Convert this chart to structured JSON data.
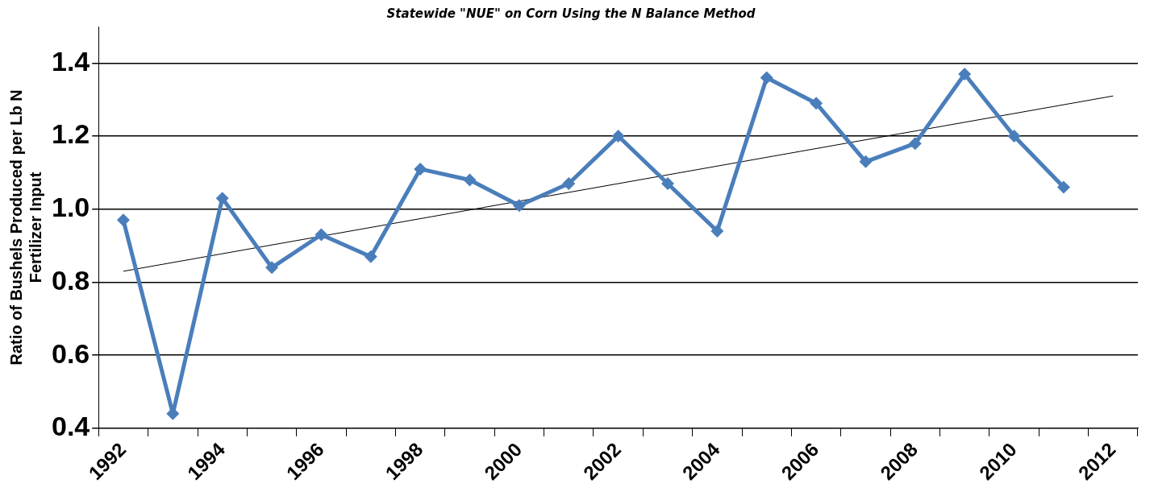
{
  "chart_data": {
    "type": "line",
    "title": "Statewide \"NUE\" on Corn Using the N Balance Method",
    "ylabel": "Ratio of Bushels Produced per Lb N Fertilizer Input",
    "categories": [
      "1992",
      null,
      "1994",
      null,
      "1996",
      null,
      "1998",
      null,
      "2000",
      null,
      "2002",
      null,
      "2004",
      null,
      "2006",
      null,
      "2008",
      null,
      "2010",
      null,
      "2012"
    ],
    "series": [
      {
        "color": "#4a7ebb",
        "values": [
          0.97,
          0.44,
          1.03,
          0.84,
          0.93,
          0.87,
          1.11,
          1.08,
          1.01,
          1.07,
          1.2,
          1.07,
          0.94,
          1.36,
          1.29,
          1.13,
          1.18,
          1.37,
          1.2,
          1.06,
          null
        ],
        "marker": "diamond"
      },
      {
        "type": "line",
        "color": "#000000",
        "values": [
          0.83,
          null,
          null,
          null,
          null,
          null,
          null,
          null,
          null,
          null,
          null,
          null,
          null,
          null,
          null,
          null,
          null,
          null,
          null,
          null,
          1.31
        ],
        "marker": "none"
      }
    ],
    "ylim": [
      0.4,
      1.5
    ],
    "yticks": [
      0.4,
      0.6,
      0.8,
      {
        "value": 1,
        "label": "1.0"
      },
      1.2,
      1.4
    ],
    "grid": "y",
    "legend": false
  }
}
